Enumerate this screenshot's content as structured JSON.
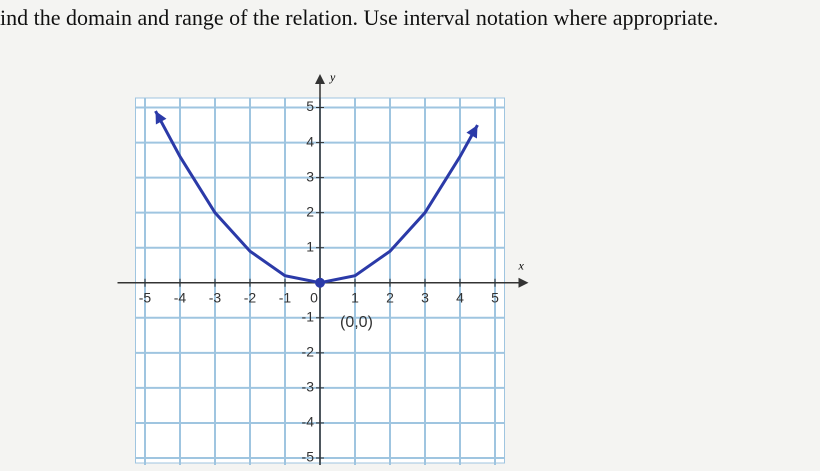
{
  "question": "ind the domain and range of the relation. Use interval notation where appropriate.",
  "chart_data": {
    "type": "line",
    "x_label": "x",
    "y_label": "y",
    "x": [
      -4.7,
      -4,
      -3,
      -2,
      -1,
      0,
      1,
      2,
      3,
      4,
      4.5
    ],
    "series": [
      {
        "color": "#2b3aa8",
        "values": [
          4.9,
          3.6,
          2,
          0.9,
          0.2,
          0,
          0.2,
          0.9,
          2,
          3.6,
          4.5
        ]
      }
    ],
    "annotation": "(0,0)",
    "xlim": [
      -5.5,
      5.5
    ],
    "ylim": [
      -5.2,
      5.5
    ],
    "xticks": [
      -5,
      -4,
      -3,
      -2,
      -1,
      0,
      1,
      2,
      3,
      4,
      5
    ],
    "yticks": [
      -5,
      -4,
      -3,
      -2,
      -1,
      1,
      2,
      3,
      4,
      5
    ],
    "grid": true
  }
}
